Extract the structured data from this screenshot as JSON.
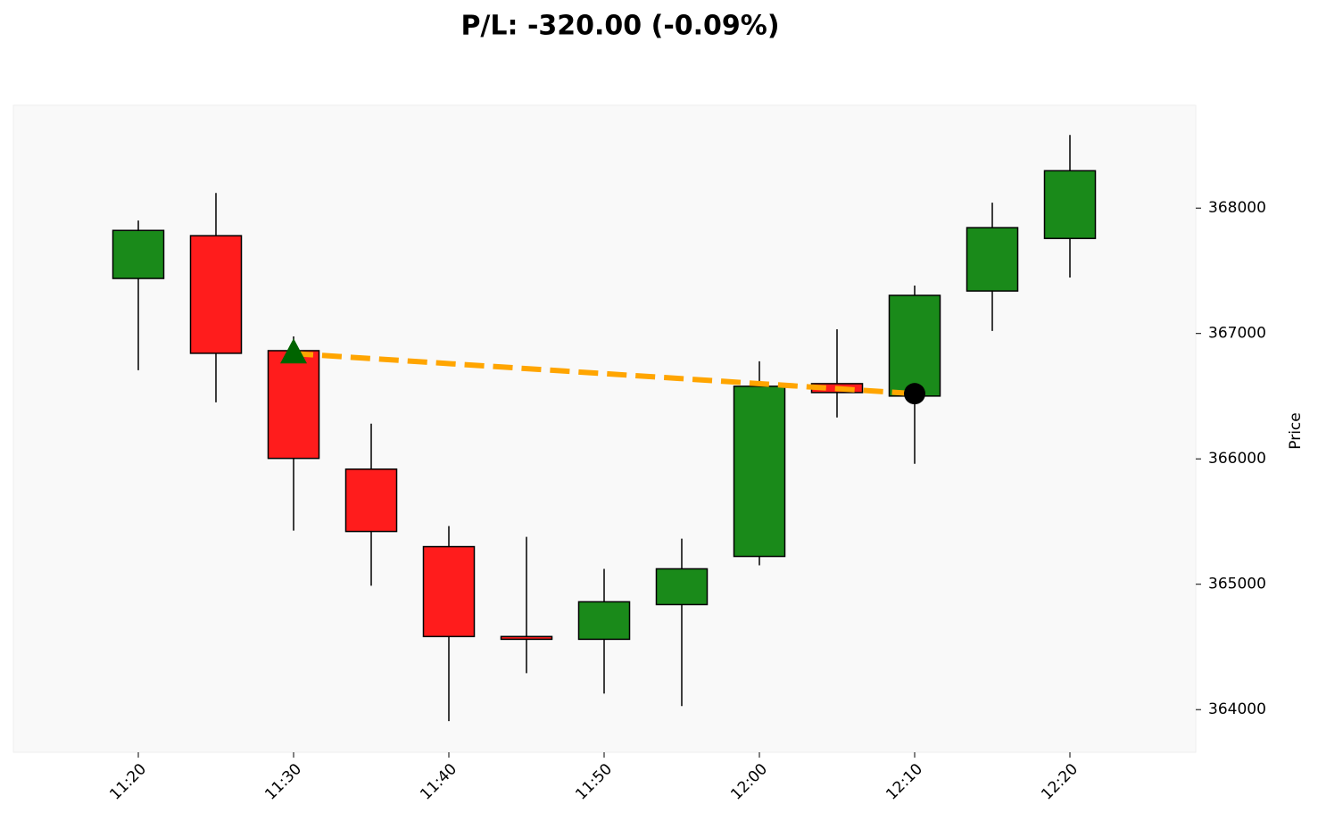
{
  "chart_data": {
    "type": "candlestick",
    "title": "P/L: -320.00 (-0.09%)",
    "y_label": "Price",
    "categories": [
      "11:20",
      null,
      "11:30",
      null,
      "11:40",
      null,
      "11:50",
      null,
      "12:00",
      null,
      "12:10",
      null,
      "12:20"
    ],
    "open": [
      367439,
      367780,
      366863,
      365918,
      365300,
      364583,
      364561,
      364838,
      365222,
      366600,
      366501,
      367339,
      367758
    ],
    "high": [
      367901,
      368121,
      366977,
      366281,
      365464,
      365378,
      365123,
      365364,
      366778,
      367034,
      367382,
      368043,
      368583
    ],
    "low": [
      366707,
      366451,
      365428,
      364988,
      363908,
      364291,
      364128,
      364028,
      365151,
      366330,
      365961,
      367020,
      367446
    ],
    "close": [
      367822,
      366842,
      366004,
      365421,
      364583,
      364561,
      364860,
      365123,
      366579,
      366529,
      367304,
      367844,
      368298
    ],
    "entry": [
      null,
      null,
      366840,
      null,
      null,
      null,
      null,
      null,
      null,
      null,
      null,
      null,
      null
    ],
    "exit": [
      null,
      null,
      null,
      null,
      null,
      null,
      null,
      null,
      null,
      null,
      366520,
      null,
      null
    ],
    "up_color": "#1a8a1a",
    "down_color": "#ff1c1c",
    "entry_color": "#006400",
    "exit_color": "#000000",
    "trade_line_color": "#ffa500",
    "ylim": [
      363660,
      368820
    ],
    "yticks": [
      364000,
      365000,
      366000,
      367000,
      368000
    ]
  }
}
